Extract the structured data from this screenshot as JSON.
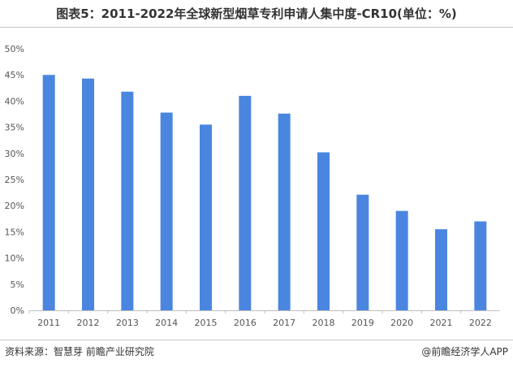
{
  "title": "图表5：2011-2022年全球新型烟草专利申请人集中度-CR10(单位：%)",
  "source": "资料来源：智慧芽 前瞻产业研究院",
  "credit": "@前瞻经济学人APP",
  "colors": {
    "bar": "#4a86e0",
    "axis": "#bfbfbf"
  },
  "chart_data": {
    "type": "bar",
    "title": "图表5：2011-2022年全球新型烟草专利申请人集中度-CR10(单位：%)",
    "categories": [
      "2011",
      "2012",
      "2013",
      "2014",
      "2015",
      "2016",
      "2017",
      "2018",
      "2019",
      "2020",
      "2021",
      "2022"
    ],
    "values": [
      45.0,
      44.3,
      41.8,
      37.8,
      35.5,
      41.0,
      37.6,
      30.2,
      22.1,
      19.0,
      15.5,
      17.0
    ],
    "ylim": [
      0,
      50
    ],
    "yticks": [
      "0%",
      "5%",
      "10%",
      "15%",
      "20%",
      "25%",
      "30%",
      "35%",
      "40%",
      "45%",
      "50%"
    ],
    "xlabel": "",
    "ylabel": "",
    "grid": false,
    "legend": "none"
  }
}
